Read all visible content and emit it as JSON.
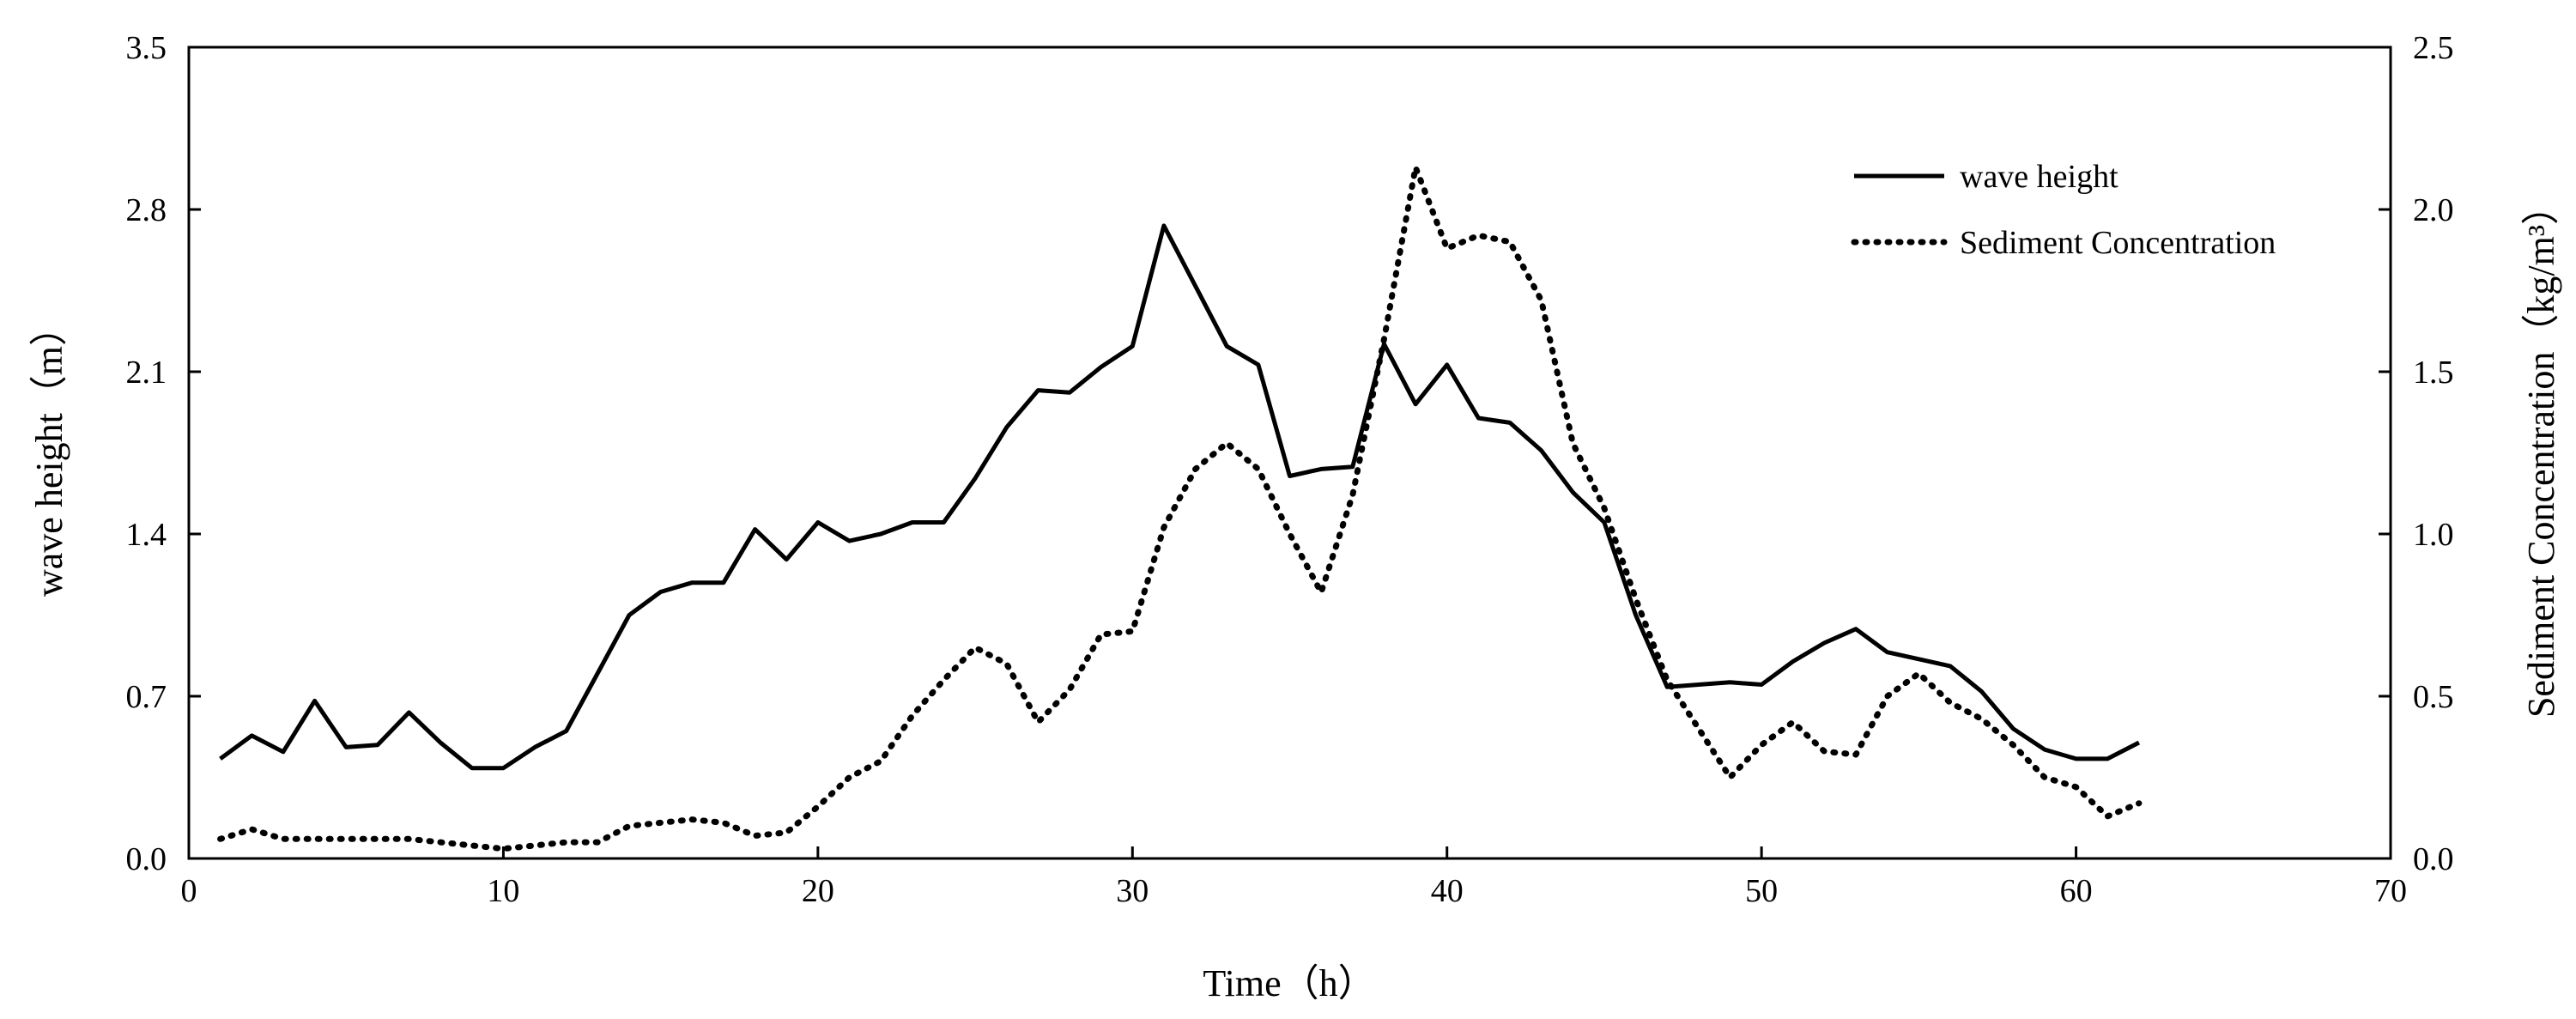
{
  "chart_data": {
    "type": "line",
    "title": "",
    "xlabel": "Time（h）",
    "ylabel_left": "wave height（m）",
    "ylabel_right": "Sediment Concentration（kg/m³）",
    "xlim": [
      0,
      70
    ],
    "ylim_left": [
      0.0,
      3.5
    ],
    "ylim_right": [
      0.0,
      2.5
    ],
    "x_ticks": [
      "0",
      "10",
      "20",
      "30",
      "40",
      "50",
      "60",
      "70"
    ],
    "y_left_ticks": [
      "0.0",
      "0.7",
      "1.4",
      "2.1",
      "2.8",
      "3.5"
    ],
    "y_right_ticks": [
      "0.0",
      "0.5",
      "1.0",
      "1.5",
      "2.0",
      "2.5"
    ],
    "grid": false,
    "legend_position": "top-right",
    "series": [
      {
        "name": "wave height",
        "axis": "left",
        "style": "solid",
        "x": [
          1,
          2,
          3,
          4,
          5,
          6,
          7,
          8,
          9,
          10,
          11,
          12,
          13,
          14,
          15,
          16,
          17,
          18,
          19,
          20,
          21,
          22,
          23,
          24,
          25,
          26,
          27,
          28,
          29,
          30,
          31,
          32,
          33,
          34,
          35,
          36,
          37,
          38,
          39,
          40,
          41,
          42,
          43,
          44,
          45,
          46,
          47,
          48,
          49,
          50,
          51,
          52,
          53,
          54,
          55,
          56,
          57,
          58,
          59,
          60,
          61,
          62
        ],
        "values": [
          0.43,
          0.53,
          0.46,
          0.68,
          0.48,
          0.49,
          0.63,
          0.5,
          0.39,
          0.39,
          0.48,
          0.55,
          0.8,
          1.05,
          1.15,
          1.19,
          1.19,
          1.42,
          1.29,
          1.45,
          1.37,
          1.4,
          1.45,
          1.45,
          1.64,
          1.86,
          2.02,
          2.01,
          2.12,
          2.21,
          2.73,
          2.47,
          2.21,
          2.13,
          1.65,
          1.68,
          1.69,
          2.22,
          1.96,
          2.13,
          1.9,
          1.88,
          1.76,
          1.58,
          1.45,
          1.05,
          0.74,
          0.75,
          0.76,
          0.75,
          0.85,
          0.93,
          0.99,
          0.89,
          0.86,
          0.83,
          0.72,
          0.56,
          0.47,
          0.43,
          0.43,
          0.5
        ]
      },
      {
        "name": "Sediment Concentration",
        "axis": "right",
        "style": "dotted",
        "x": [
          1,
          2,
          3,
          4,
          5,
          6,
          7,
          8,
          9,
          10,
          11,
          12,
          13,
          14,
          15,
          16,
          17,
          18,
          19,
          20,
          21,
          22,
          23,
          24,
          25,
          26,
          27,
          28,
          29,
          30,
          31,
          32,
          33,
          34,
          35,
          36,
          37,
          38,
          39,
          40,
          41,
          42,
          43,
          44,
          45,
          46,
          47,
          48,
          49,
          50,
          51,
          52,
          53,
          54,
          55,
          56,
          57,
          58,
          59,
          60,
          61,
          62
        ],
        "values": [
          0.06,
          0.09,
          0.06,
          0.06,
          0.06,
          0.06,
          0.06,
          0.05,
          0.04,
          0.03,
          0.04,
          0.05,
          0.05,
          0.1,
          0.11,
          0.12,
          0.11,
          0.07,
          0.08,
          0.16,
          0.25,
          0.3,
          0.44,
          0.55,
          0.65,
          0.6,
          0.42,
          0.52,
          0.69,
          0.7,
          1.02,
          1.2,
          1.28,
          1.2,
          1.0,
          0.82,
          1.12,
          1.6,
          2.13,
          1.88,
          1.92,
          1.9,
          1.72,
          1.28,
          1.08,
          0.8,
          0.55,
          0.4,
          0.25,
          0.35,
          0.42,
          0.33,
          0.32,
          0.5,
          0.57,
          0.48,
          0.43,
          0.35,
          0.25,
          0.22,
          0.13,
          0.17
        ]
      }
    ]
  }
}
